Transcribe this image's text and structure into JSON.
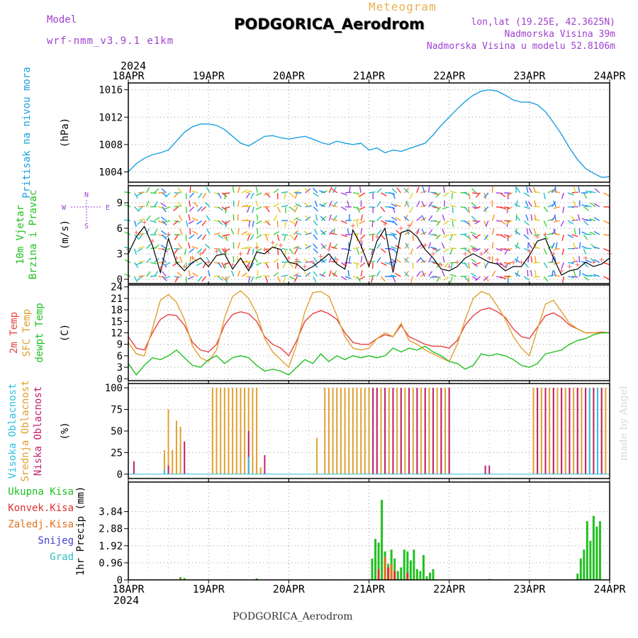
{
  "header": {
    "model_label": "Model",
    "model_name": "wrf-nmm_v3.9.1 e1km",
    "top_label": "Meteogram",
    "station": "PODGORICA_Aerodrom",
    "coords": "lon,lat (19.25E, 42.3625N)",
    "altitude": "Nadmorska Visina 39m",
    "model_altitude": "Nadmorska Visina u modelu 52.8106m",
    "year": "2024",
    "footer": "PODGORICA_Aerodrom",
    "credit": "made by Angel"
  },
  "colors": {
    "pressure": "#1ca0e0",
    "temp2m": "#e84040",
    "sfc": "#e0a030",
    "dew": "#20c020",
    "high": "#30c0e0",
    "mid": "#e0a030",
    "low": "#c02070",
    "total": "#20c020",
    "conv": "#e03030",
    "frozen": "#e07020",
    "snow": "#4040d0",
    "grad": "#30c0c0",
    "wind_label": "#20c020"
  },
  "chart_data": [
    {
      "type": "line",
      "panel": "pressure",
      "ylabel_colored": [
        "Pritisak na nivou mora"
      ],
      "ylabel_unit": "(hPa)",
      "x_ticks": [
        "18APR",
        "19APR",
        "20APR",
        "21APR",
        "22APR",
        "23APR",
        "24APR"
      ],
      "x_days": [
        0,
        1,
        2,
        3,
        4,
        5,
        6
      ],
      "ylim": [
        1002.5,
        1017
      ],
      "yticks": [
        1004,
        1008,
        1012,
        1016
      ],
      "grid": true,
      "series": [
        {
          "x": [
            0,
            0.1,
            0.2,
            0.3,
            0.4,
            0.5,
            0.6,
            0.7,
            0.8,
            0.9,
            1.0,
            1.1,
            1.2,
            1.3,
            1.4,
            1.5,
            1.6,
            1.7,
            1.8,
            1.9,
            2.0,
            2.1,
            2.2,
            2.3,
            2.4,
            2.5,
            2.6,
            2.7,
            2.8,
            2.9,
            3.0,
            3.1,
            3.2,
            3.3,
            3.4,
            3.5,
            3.6,
            3.7,
            3.8,
            3.9,
            4.0,
            4.1,
            4.2,
            4.3,
            4.4,
            4.5,
            4.6,
            4.7,
            4.8,
            4.9,
            5.0,
            5.1,
            5.2,
            5.3,
            5.4,
            5.5,
            5.6,
            5.7,
            5.8,
            5.9,
            6.0
          ],
          "values": [
            1004.0,
            1005.2,
            1006.0,
            1006.5,
            1006.8,
            1007.2,
            1008.5,
            1009.8,
            1010.6,
            1011.0,
            1011.0,
            1010.8,
            1010.2,
            1009.2,
            1008.2,
            1007.8,
            1008.5,
            1009.2,
            1009.3,
            1009.0,
            1008.8,
            1009.0,
            1009.2,
            1008.8,
            1008.3,
            1008.0,
            1008.5,
            1008.2,
            1008.0,
            1008.2,
            1007.2,
            1007.5,
            1006.8,
            1007.2,
            1007.0,
            1007.4,
            1007.8,
            1008.2,
            1009.4,
            1010.8,
            1012.0,
            1013.2,
            1014.3,
            1015.2,
            1015.8,
            1016.0,
            1015.8,
            1015.2,
            1014.5,
            1014.2,
            1014.2,
            1013.8,
            1012.8,
            1011.2,
            1009.5,
            1007.5,
            1005.8,
            1004.5,
            1003.8,
            1003.2,
            1003.3
          ]
        }
      ]
    },
    {
      "type": "line",
      "panel": "wind",
      "ylabel_colored": [
        "10m Vjetar",
        "Brzina i Pravac"
      ],
      "ylabel_unit": "(m/s)",
      "compass": [
        "N",
        "E",
        "W",
        "S"
      ],
      "ylim": [
        -0.5,
        11
      ],
      "yticks": [
        0,
        3,
        6,
        9
      ],
      "grid": true,
      "series": [
        {
          "name": "speed",
          "x": [
            0,
            0.1,
            0.2,
            0.3,
            0.4,
            0.5,
            0.6,
            0.7,
            0.8,
            0.9,
            1.0,
            1.1,
            1.2,
            1.3,
            1.4,
            1.5,
            1.6,
            1.7,
            1.8,
            1.9,
            2.0,
            2.1,
            2.2,
            2.3,
            2.4,
            2.5,
            2.6,
            2.7,
            2.8,
            2.9,
            3.0,
            3.1,
            3.2,
            3.3,
            3.4,
            3.5,
            3.6,
            3.7,
            3.8,
            3.9,
            4.0,
            4.1,
            4.2,
            4.3,
            4.4,
            4.5,
            4.6,
            4.7,
            4.8,
            4.9,
            5.0,
            5.1,
            5.2,
            5.3,
            5.4,
            5.5,
            5.6,
            5.7,
            5.8,
            5.9,
            6.0
          ],
          "values": [
            3.0,
            5.0,
            6.2,
            4.0,
            0.8,
            4.8,
            2.0,
            1.0,
            2.0,
            2.5,
            1.5,
            2.8,
            3.0,
            1.2,
            2.5,
            1.0,
            3.2,
            3.0,
            3.8,
            3.5,
            2.0,
            1.8,
            1.0,
            1.5,
            2.2,
            3.0,
            1.8,
            1.2,
            5.8,
            4.0,
            1.5,
            4.5,
            6.0,
            0.8,
            5.5,
            5.8,
            5.0,
            3.5,
            2.5,
            1.2,
            1.0,
            1.5,
            2.5,
            3.0,
            2.5,
            2.0,
            1.8,
            1.0,
            1.5,
            1.5,
            2.8,
            4.5,
            4.8,
            2.5,
            0.5,
            1.0,
            1.2,
            2.0,
            1.5,
            1.8,
            2.5
          ]
        }
      ]
    },
    {
      "type": "line",
      "panel": "temperature",
      "ylabel_colored": [
        "2m Temp",
        "SFC Temp",
        "dewpt Temp"
      ],
      "ylabel_unit": "(C)",
      "ylim": [
        -0.5,
        24.5
      ],
      "yticks": [
        0,
        3,
        6,
        9,
        12,
        15,
        18,
        21,
        24
      ],
      "grid": true,
      "series": [
        {
          "name": "2m Temp",
          "x": [
            0,
            0.1,
            0.2,
            0.3,
            0.4,
            0.5,
            0.6,
            0.7,
            0.8,
            0.9,
            1.0,
            1.1,
            1.2,
            1.3,
            1.4,
            1.5,
            1.6,
            1.7,
            1.8,
            1.9,
            2.0,
            2.1,
            2.2,
            2.3,
            2.4,
            2.5,
            2.6,
            2.7,
            2.8,
            2.9,
            3.0,
            3.1,
            3.2,
            3.3,
            3.4,
            3.5,
            3.6,
            3.7,
            3.8,
            3.9,
            4.0,
            4.1,
            4.2,
            4.3,
            4.4,
            4.5,
            4.6,
            4.7,
            4.8,
            4.9,
            5.0,
            5.1,
            5.2,
            5.3,
            5.4,
            5.5,
            5.6,
            5.7,
            5.8,
            5.9,
            6.0
          ],
          "values": [
            11.0,
            8.0,
            7.5,
            12.0,
            15.5,
            16.8,
            16.5,
            14.0,
            9.5,
            7.5,
            7.0,
            9.0,
            14.0,
            16.8,
            17.5,
            17.0,
            15.0,
            11.0,
            9.0,
            8.0,
            6.0,
            10.0,
            15.0,
            17.0,
            17.8,
            17.0,
            15.5,
            12.0,
            9.5,
            9.0,
            9.0,
            10.5,
            11.5,
            11.0,
            14.0,
            11.0,
            10.0,
            9.0,
            8.5,
            8.5,
            8.0,
            10.0,
            14.0,
            16.5,
            18.0,
            18.5,
            17.5,
            16.0,
            13.0,
            11.0,
            10.5,
            13.5,
            16.5,
            17.2,
            16.0,
            14.0,
            13.0,
            12.0,
            12.0,
            12.2,
            12.0
          ]
        },
        {
          "name": "SFC Temp",
          "x": [
            0,
            0.1,
            0.2,
            0.3,
            0.4,
            0.5,
            0.6,
            0.7,
            0.8,
            0.9,
            1.0,
            1.1,
            1.2,
            1.3,
            1.4,
            1.5,
            1.6,
            1.7,
            1.8,
            1.9,
            2.0,
            2.1,
            2.2,
            2.3,
            2.4,
            2.5,
            2.6,
            2.7,
            2.8,
            2.9,
            3.0,
            3.1,
            3.2,
            3.3,
            3.4,
            3.5,
            3.6,
            3.7,
            3.8,
            3.9,
            4.0,
            4.1,
            4.2,
            4.3,
            4.4,
            4.5,
            4.6,
            4.7,
            4.8,
            4.9,
            5.0,
            5.1,
            5.2,
            5.3,
            5.4,
            5.5,
            5.6,
            5.7,
            5.8,
            5.9,
            6.0
          ],
          "values": [
            9.5,
            6.5,
            6.0,
            13.0,
            20.5,
            22.0,
            20.0,
            15.5,
            8.5,
            5.5,
            4.5,
            7.5,
            16.0,
            21.5,
            23.0,
            21.0,
            17.0,
            10.5,
            7.0,
            5.0,
            3.0,
            9.0,
            17.5,
            22.5,
            22.8,
            21.5,
            16.5,
            11.0,
            8.0,
            7.5,
            8.0,
            10.5,
            12.0,
            11.0,
            14.5,
            10.0,
            9.0,
            7.5,
            6.5,
            5.5,
            4.5,
            9.0,
            15.5,
            21.0,
            22.8,
            22.0,
            19.0,
            15.5,
            11.0,
            8.0,
            6.0,
            13.0,
            19.5,
            20.5,
            17.5,
            14.5,
            13.0,
            12.0,
            12.0,
            12.0,
            12.0
          ]
        },
        {
          "name": "dewpt Temp",
          "x": [
            0,
            0.1,
            0.2,
            0.3,
            0.4,
            0.5,
            0.6,
            0.7,
            0.8,
            0.9,
            1.0,
            1.1,
            1.2,
            1.3,
            1.4,
            1.5,
            1.6,
            1.7,
            1.8,
            1.9,
            2.0,
            2.1,
            2.2,
            2.3,
            2.4,
            2.5,
            2.6,
            2.7,
            2.8,
            2.9,
            3.0,
            3.1,
            3.2,
            3.3,
            3.4,
            3.5,
            3.6,
            3.7,
            3.8,
            3.9,
            4.0,
            4.1,
            4.2,
            4.3,
            4.4,
            4.5,
            4.6,
            4.7,
            4.8,
            4.9,
            5.0,
            5.1,
            5.2,
            5.3,
            5.4,
            5.5,
            5.6,
            5.7,
            5.8,
            5.9,
            6.0
          ],
          "values": [
            4.0,
            1.0,
            3.5,
            5.5,
            5.0,
            6.0,
            7.5,
            5.5,
            3.5,
            3.0,
            5.0,
            6.0,
            4.0,
            5.5,
            6.0,
            5.5,
            3.5,
            2.0,
            2.5,
            2.0,
            1.0,
            3.0,
            5.0,
            4.0,
            6.5,
            4.5,
            6.0,
            5.0,
            6.0,
            5.5,
            6.0,
            5.5,
            6.0,
            8.0,
            7.0,
            8.0,
            7.5,
            8.5,
            7.0,
            6.0,
            4.5,
            4.0,
            2.5,
            3.5,
            6.5,
            6.0,
            6.5,
            6.0,
            5.0,
            3.5,
            3.0,
            4.0,
            6.5,
            7.0,
            7.5,
            9.0,
            10.0,
            10.5,
            11.5,
            12.0,
            12.0
          ]
        }
      ]
    },
    {
      "type": "bar",
      "panel": "clouds",
      "ylabel_colored": [
        "Visoka Oblacnost",
        "Srednja Oblacnost",
        "Niska Oblacnost"
      ],
      "ylabel_unit": "(%)",
      "ylim": [
        -5,
        105
      ],
      "yticks": [
        0,
        25,
        50,
        75,
        100
      ],
      "grid": true,
      "series": [
        {
          "name": "Srednja Oblacnost",
          "x": [
            0.45,
            0.5,
            0.55,
            0.6,
            0.65,
            1.05,
            1.1,
            1.15,
            1.2,
            1.25,
            1.3,
            1.35,
            1.4,
            1.45,
            1.5,
            1.55,
            1.6,
            1.65,
            2.35,
            2.45,
            2.5,
            2.55,
            2.6,
            2.65,
            2.7,
            2.75,
            2.8,
            2.85,
            2.9,
            2.95,
            3.0,
            3.05,
            3.1,
            3.15,
            3.2,
            3.25,
            3.3,
            3.35,
            3.4,
            3.45,
            3.5,
            3.55,
            3.6,
            3.65,
            3.7,
            3.75,
            3.8,
            3.85,
            3.9,
            3.95,
            4.0,
            5.05,
            5.1,
            5.15,
            5.2,
            5.25,
            5.3,
            5.35,
            5.4,
            5.45,
            5.5,
            5.55,
            5.6,
            5.65,
            5.7,
            5.75,
            5.8,
            5.85,
            5.9,
            5.95
          ],
          "values": [
            28,
            75,
            28,
            62,
            55,
            100,
            100,
            100,
            100,
            100,
            100,
            100,
            100,
            100,
            100,
            100,
            100,
            8,
            42,
            100,
            100,
            100,
            100,
            100,
            100,
            100,
            100,
            100,
            100,
            100,
            100,
            100,
            100,
            100,
            100,
            100,
            100,
            100,
            100,
            100,
            100,
            100,
            100,
            100,
            100,
            100,
            100,
            100,
            100,
            100,
            100,
            100,
            100,
            100,
            100,
            100,
            100,
            100,
            100,
            100,
            100,
            100,
            100,
            100,
            100,
            100,
            100,
            100,
            100,
            100
          ]
        },
        {
          "name": "Niska Oblacnost",
          "x": [
            0.07,
            0.5,
            0.7,
            1.5,
            1.7,
            3.05,
            3.1,
            3.2,
            3.3,
            3.4,
            3.5,
            3.6,
            3.7,
            3.8,
            3.9,
            4.0,
            4.45,
            4.5,
            5.1,
            5.2,
            5.3,
            5.4,
            5.5,
            5.6,
            5.7,
            5.8,
            5.9
          ],
          "values": [
            15,
            10,
            38,
            50,
            22,
            100,
            100,
            100,
            100,
            100,
            100,
            100,
            100,
            100,
            100,
            100,
            10,
            10,
            100,
            100,
            100,
            100,
            100,
            100,
            100,
            100,
            100
          ]
        },
        {
          "name": "Visoka Oblacnost",
          "x": [
            0.45,
            1.5,
            5.75,
            5.85
          ],
          "values": [
            5,
            20,
            100,
            100
          ]
        }
      ]
    },
    {
      "type": "bar",
      "panel": "precip",
      "ylabel_colored": [
        "Ukupna Kisa",
        "Konvek.Kisa",
        "Zaledj.Kisa",
        "Snijeg",
        "Grad"
      ],
      "ylabel_unit": "1hr Precip (mm)",
      "ylim": [
        0,
        5.5
      ],
      "yticks": [
        0,
        0.96,
        1.92,
        2.88,
        3.84
      ],
      "ytick_labels": [
        "0",
        "0.96",
        "1.92",
        "2.88",
        "3.84"
      ],
      "grid": true,
      "series": [
        {
          "name": "Ukupna Kisa",
          "x": [
            0.65,
            0.7,
            1.6,
            3.04,
            3.08,
            3.12,
            3.16,
            3.2,
            3.24,
            3.28,
            3.32,
            3.36,
            3.4,
            3.44,
            3.48,
            3.52,
            3.56,
            3.6,
            3.64,
            3.68,
            3.72,
            3.76,
            3.8,
            4.5,
            5.6,
            5.64,
            5.68,
            5.72,
            5.76,
            5.8,
            5.84,
            5.88
          ],
          "values": [
            0.15,
            0.1,
            0.08,
            1.2,
            2.3,
            2.1,
            4.5,
            1.6,
            0.9,
            1.7,
            1.2,
            0.5,
            0.7,
            1.7,
            1.6,
            1.1,
            1.7,
            0.6,
            0.5,
            1.4,
            0.2,
            0.4,
            0.6,
            0.05,
            0.35,
            1.2,
            1.7,
            3.3,
            2.2,
            3.6,
            3.0,
            3.3
          ]
        },
        {
          "name": "Konvek.Kisa",
          "x": [
            3.12,
            3.24,
            3.32,
            3.48
          ],
          "values": [
            0.6,
            0.7,
            0.5,
            0.4
          ]
        },
        {
          "name": "Zaledj.Kisa",
          "x": [
            0.65,
            3.2,
            3.28
          ],
          "values": [
            0.1,
            1.3,
            0.9
          ]
        }
      ]
    }
  ]
}
